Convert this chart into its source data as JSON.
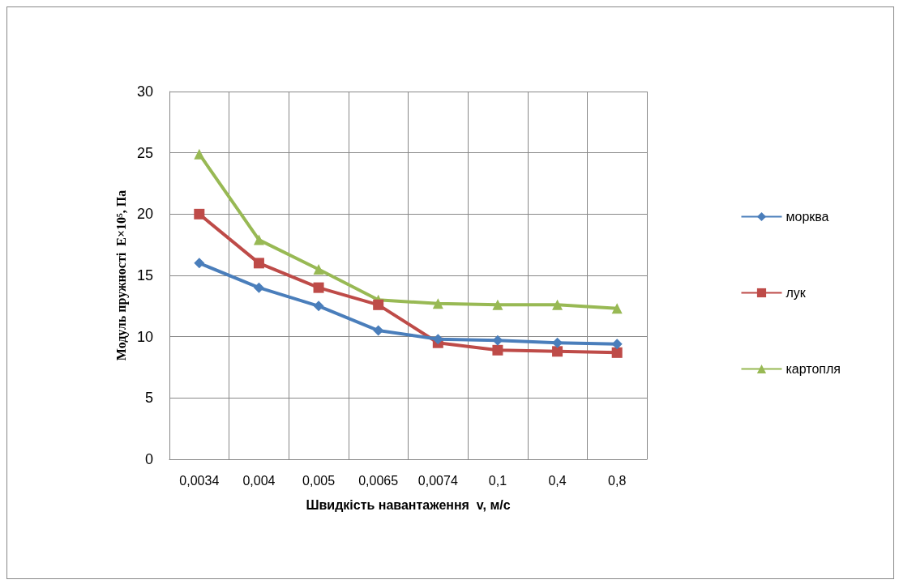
{
  "chart_data": {
    "type": "line",
    "categories": [
      "0,0034",
      "0,004",
      "0,005",
      "0,0065",
      "0,0074",
      "0,1",
      "0,4",
      "0,8"
    ],
    "series": [
      {
        "name": "морква",
        "color": "#4a7ebb",
        "marker": "diamond",
        "values": [
          16,
          14,
          12.5,
          10.5,
          9.8,
          9.7,
          9.5,
          9.4
        ]
      },
      {
        "name": "лук",
        "color": "#be4b48",
        "marker": "square",
        "values": [
          20,
          16,
          14,
          12.6,
          9.5,
          8.9,
          8.8,
          8.7
        ]
      },
      {
        "name": "картопля",
        "color": "#98b954",
        "marker": "triangle",
        "values": [
          24.9,
          17.9,
          15.5,
          13,
          12.7,
          12.6,
          12.6,
          12.3
        ]
      }
    ],
    "ylim": [
      0,
      30
    ],
    "yticks": [
      0,
      5,
      10,
      15,
      20,
      25,
      30
    ],
    "xlabel": "Швидкість навантаження  v, м/с",
    "ylabel": "Модуль пружності  E×10⁵, Па",
    "grid": true,
    "legend": "right"
  }
}
